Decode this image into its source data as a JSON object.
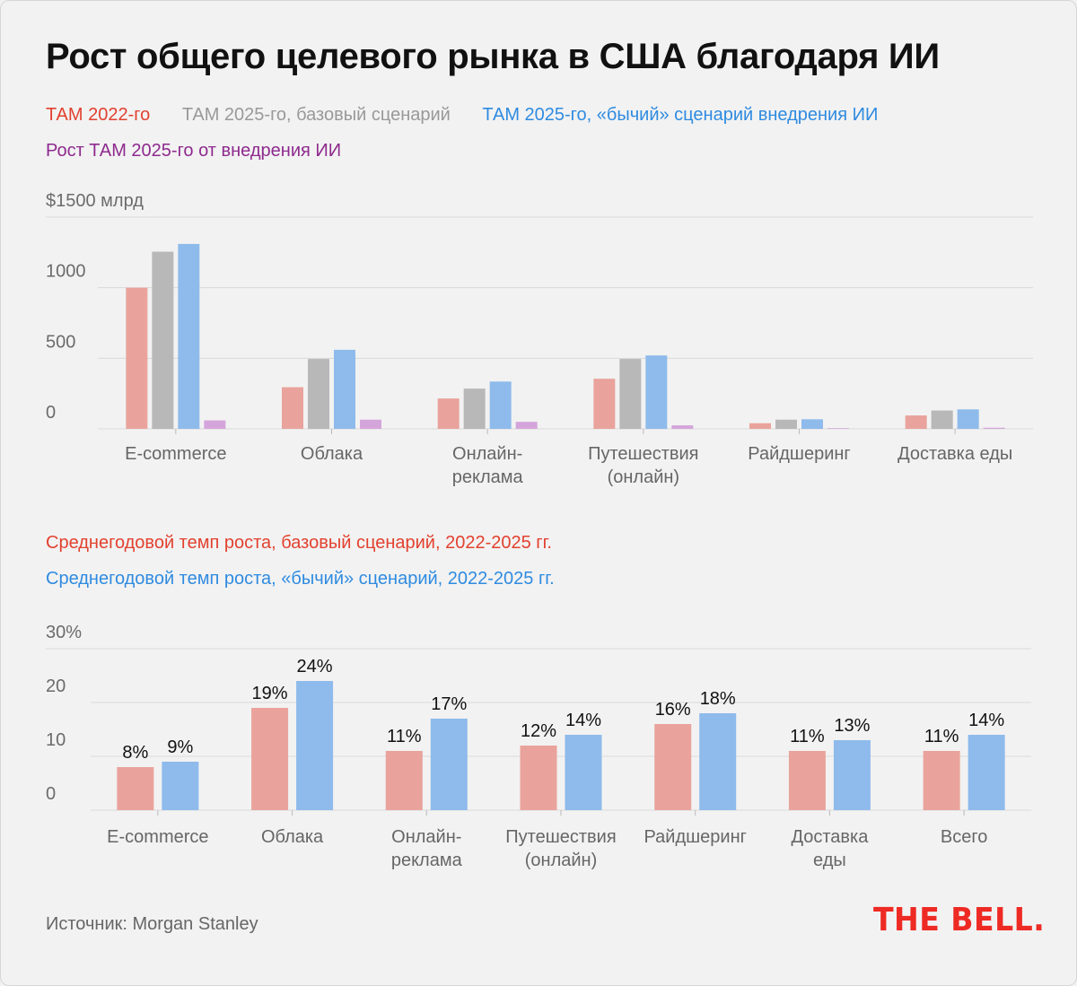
{
  "title": "Рост общего целевого рынка в США благодаря ИИ",
  "colors": {
    "tam2022": "#e9a39c",
    "tam2025_base": "#b8b8b8",
    "tam2025_bull": "#8ebbeb",
    "growth_ai": "#d4a5db",
    "legend_red": "#e2412f",
    "legend_gray": "#999999",
    "legend_blue": "#2f8be0",
    "legend_purple": "#8e2a8e",
    "grid": "#d9d9d9",
    "logo": "#ee2a24"
  },
  "chart_data": [
    {
      "type": "bar",
      "legend": [
        "ТАМ 2022-го",
        "ТАМ 2025-го, базовый сценарий",
        "ТАМ 2025-го, «бычий» сценарий внедрения ИИ",
        "Рост ТАМ 2025-го от внедрения ИИ"
      ],
      "categories": [
        [
          "E-commerce"
        ],
        [
          "Облака"
        ],
        [
          "Онлайн-",
          "реклама"
        ],
        [
          "Путешествия",
          "(онлайн)"
        ],
        [
          "Райдшеринг"
        ],
        [
          "Доставка еды"
        ]
      ],
      "series": [
        {
          "name": "ТАМ 2022-го",
          "values": [
            1000,
            295,
            215,
            355,
            40,
            95
          ]
        },
        {
          "name": "ТАМ 2025-го, базовый сценарий",
          "values": [
            1255,
            495,
            285,
            495,
            65,
            130
          ]
        },
        {
          "name": "ТАМ 2025-го, «бычий» сценарий внедрения ИИ",
          "values": [
            1310,
            560,
            335,
            520,
            68,
            138
          ]
        },
        {
          "name": "Рост ТАМ 2025-го от внедрения ИИ",
          "values": [
            60,
            65,
            50,
            25,
            5,
            8
          ]
        }
      ],
      "y_ticks": [
        "$1500 млрд",
        "1000",
        "500",
        "0"
      ],
      "ylim": [
        0,
        1500
      ],
      "grid": true
    },
    {
      "type": "bar",
      "legend": [
        "Среднегодовой темп роста, базовый сценарий, 2022-2025 гг.",
        "Среднегодовой темп роста, «бычий» сценарий, 2022-2025 гг."
      ],
      "categories": [
        [
          "E-commerce"
        ],
        [
          "Облака"
        ],
        [
          "Онлайн-",
          "реклама"
        ],
        [
          "Путешествия",
          "(онлайн)"
        ],
        [
          "Райдшеринг"
        ],
        [
          "Доставка",
          "еды"
        ],
        [
          "Всего"
        ]
      ],
      "series": [
        {
          "name": "Среднегодовой темп роста, базовый сценарий, 2022-2025 гг.",
          "values": [
            8,
            19,
            11,
            12,
            16,
            11,
            11
          ],
          "labels": [
            "8%",
            "19%",
            "11%",
            "12%",
            "16%",
            "11%",
            "11%"
          ]
        },
        {
          "name": "Среднегодовой темп роста, «бычий» сценарий, 2022-2025 гг.",
          "values": [
            9,
            24,
            17,
            14,
            18,
            13,
            14
          ],
          "labels": [
            "9%",
            "24%",
            "17%",
            "14%",
            "18%",
            "13%",
            "14%"
          ]
        }
      ],
      "y_ticks": [
        "30%",
        "20",
        "10",
        "0"
      ],
      "ylim": [
        0,
        30
      ],
      "grid": true
    }
  ],
  "footer": {
    "source": "Источник: Morgan Stanley",
    "logo": "THE BELL."
  }
}
